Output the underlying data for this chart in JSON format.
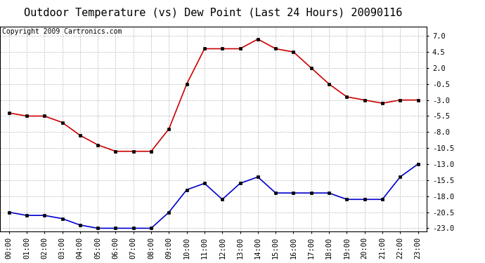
{
  "title": "Outdoor Temperature (vs) Dew Point (Last 24 Hours) 20090116",
  "copyright": "Copyright 2009 Cartronics.com",
  "x_labels": [
    "00:00",
    "01:00",
    "02:00",
    "03:00",
    "04:00",
    "05:00",
    "06:00",
    "07:00",
    "08:00",
    "09:00",
    "10:00",
    "11:00",
    "12:00",
    "13:00",
    "14:00",
    "15:00",
    "16:00",
    "17:00",
    "18:00",
    "19:00",
    "20:00",
    "21:00",
    "22:00",
    "23:00"
  ],
  "temp_data": [
    -5.0,
    -5.5,
    -5.5,
    -6.5,
    -8.5,
    -10.0,
    -11.0,
    -11.0,
    -11.0,
    -7.5,
    -0.5,
    5.0,
    5.0,
    5.0,
    6.5,
    5.0,
    4.5,
    2.0,
    -0.5,
    -2.5,
    -3.0,
    -3.5,
    -3.0,
    -3.0
  ],
  "dew_data": [
    -20.5,
    -21.0,
    -21.0,
    -21.5,
    -22.5,
    -23.0,
    -23.0,
    -23.0,
    -23.0,
    -20.5,
    -17.0,
    -16.0,
    -18.5,
    -16.0,
    -15.0,
    -17.5,
    -17.5,
    -17.5,
    -17.5,
    -18.5,
    -18.5,
    -18.5,
    -15.0,
    -13.0
  ],
  "temp_color": "#CC0000",
  "dew_color": "#0000CC",
  "ylim": [
    -23.5,
    8.5
  ],
  "yticks": [
    7.0,
    4.5,
    2.0,
    -0.5,
    -3.0,
    -5.5,
    -8.0,
    -10.5,
    -13.0,
    -15.5,
    -18.0,
    -20.5,
    -23.0
  ],
  "background_color": "#ffffff",
  "grid_color": "#bbbbbb",
  "title_fontsize": 11,
  "copyright_fontsize": 7,
  "tick_fontsize": 7.5
}
